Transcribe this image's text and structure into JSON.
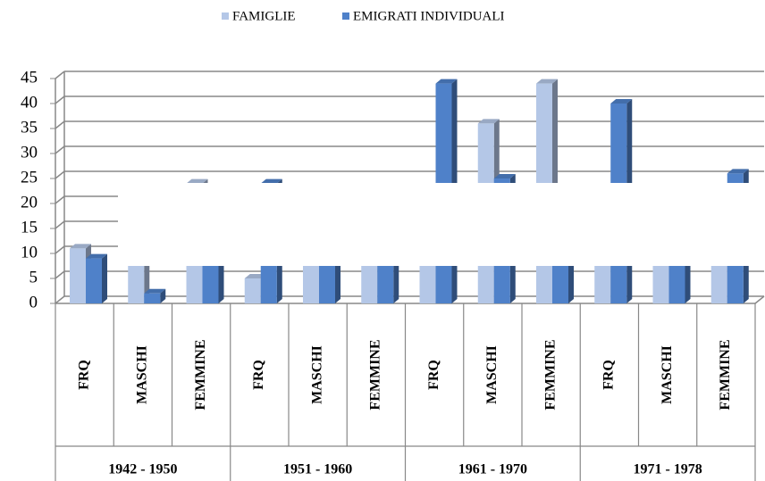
{
  "chart_data": {
    "type": "bar3d",
    "categories": [
      "FRQ",
      "MASCHI",
      "FEMMINE",
      "FRQ",
      "MASCHI",
      "FEMMINE",
      "FRQ",
      "MASCHI",
      "FEMMINE",
      "FRQ",
      "MASCHI",
      "FEMMINE"
    ],
    "group_labels": [
      "1942 - 1950",
      "1951 - 1960",
      "1961 - 1970",
      "1971 - 1978"
    ],
    "series": [
      {
        "name": "FAMIGLIE",
        "color": "#b4c7e7",
        "values": [
          11,
          10,
          24,
          5,
          8,
          10,
          20,
          36,
          44,
          18,
          14,
          20
        ]
      },
      {
        "name": "EMIGRATI INDIVIDUALI",
        "color": "#4f81c9",
        "values": [
          9,
          2,
          12,
          24,
          10,
          12,
          44,
          25,
          18,
          40,
          16,
          26
        ]
      }
    ],
    "ylim": [
      0,
      45
    ],
    "yticks": [
      0,
      5,
      10,
      15,
      20,
      25,
      30,
      35,
      40,
      45
    ],
    "grid": true,
    "legend": "top"
  }
}
